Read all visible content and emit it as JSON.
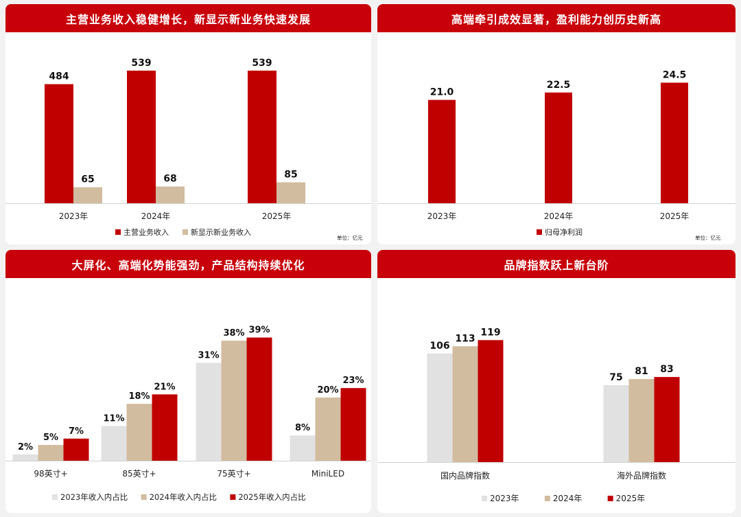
{
  "colors": {
    "header": "#c8000a",
    "red": "#c00000",
    "tan": "#d2bc9f",
    "gray": "#e1e1e1"
  },
  "chart_data": [
    {
      "type": "bar",
      "title": "主营业务收入稳健增长，新显示新业务快速发展",
      "categories": [
        "2023年",
        "2024年",
        "2025年"
      ],
      "series": [
        {
          "name": "主营业务收入",
          "values": [
            484,
            539,
            539
          ],
          "labels": [
            "484",
            "539",
            "539"
          ]
        },
        {
          "name": "新显示新业务收入",
          "values": [
            65,
            68,
            85
          ],
          "labels": [
            "65",
            "68",
            "85"
          ]
        }
      ],
      "unit": "单位：亿元",
      "ylim": [
        0,
        600
      ],
      "legend": "bottom"
    },
    {
      "type": "bar",
      "title": "高端牵引成效显著，盈利能力创历史新高",
      "categories": [
        "2023年",
        "2024年",
        "2025年"
      ],
      "series": [
        {
          "name": "归母净利润",
          "values": [
            21.0,
            22.5,
            24.5
          ],
          "labels": [
            "21.0",
            "22.5",
            "24.5"
          ]
        }
      ],
      "unit": "单位：亿元",
      "ylim": [
        0,
        30
      ],
      "legend": "bottom"
    },
    {
      "type": "bar",
      "title": "大屏化、高端化势能强劲，产品结构持续优化",
      "categories": [
        "98英寸+",
        "85英寸+",
        "75英寸+",
        "MiniLED"
      ],
      "series": [
        {
          "name": "2023年收入内占比",
          "values": [
            2,
            11,
            31,
            8
          ],
          "labels": [
            "2%",
            "11%",
            "31%",
            "8%"
          ]
        },
        {
          "name": "2024年收入内占比",
          "values": [
            5,
            18,
            38,
            20
          ],
          "labels": [
            "5%",
            "18%",
            "38%",
            "20%"
          ]
        },
        {
          "name": "2025年收入内占比",
          "values": [
            7,
            21,
            39,
            23
          ],
          "labels": [
            "7%",
            "21%",
            "39%",
            "23%"
          ]
        }
      ],
      "ylim": [
        0,
        45
      ],
      "legend": "bottom"
    },
    {
      "type": "bar",
      "title": "品牌指数跃上新台阶",
      "categories": [
        "国内品牌指数",
        "海外品牌指数"
      ],
      "series": [
        {
          "name": "2023年",
          "values": [
            106,
            75
          ],
          "labels": [
            "106",
            "75"
          ]
        },
        {
          "name": "2024年",
          "values": [
            113,
            81
          ],
          "labels": [
            "113",
            "81"
          ]
        },
        {
          "name": "2025年",
          "values": [
            119,
            83
          ],
          "labels": [
            "119",
            "83"
          ]
        }
      ],
      "ylim": [
        0,
        140
      ],
      "legend": "bottom"
    }
  ]
}
